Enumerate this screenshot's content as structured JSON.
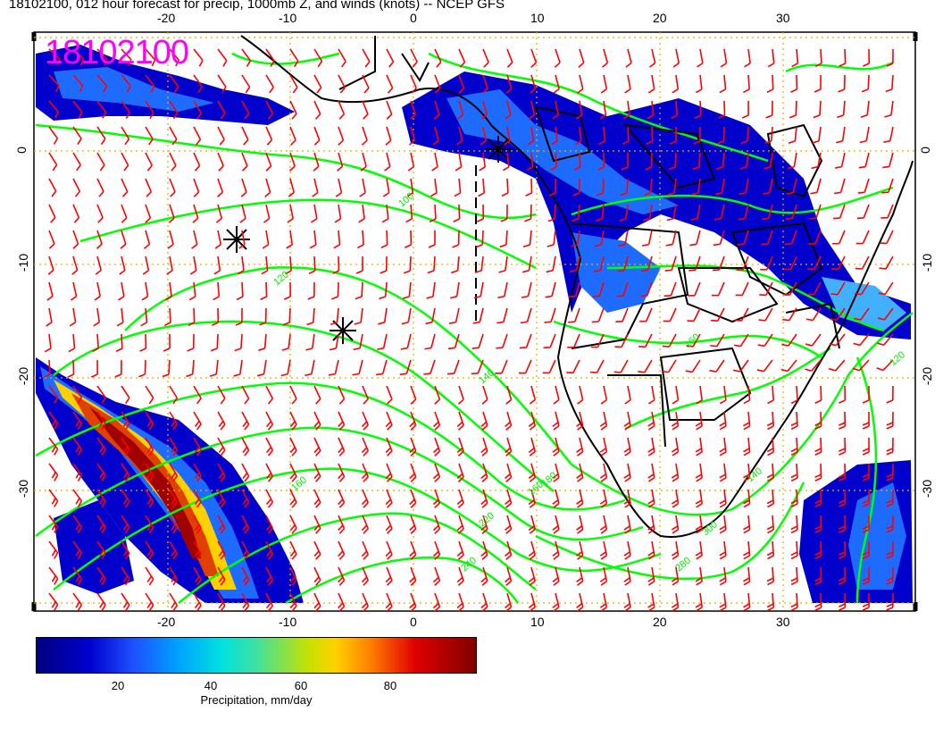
{
  "title": "18102100, 012 hour forecast for precip, 1000mb Z, and winds (knots) -- NCEP GFS",
  "date_stamp": "18102100",
  "map": {
    "lon_ticks": [
      "-20",
      "-10",
      "0",
      "10",
      "20",
      "30"
    ],
    "lat_ticks": [
      "0",
      "-10",
      "-20",
      "-30"
    ],
    "lon_range": [
      -30,
      40
    ],
    "lat_range": [
      -40,
      10
    ],
    "contour_labels": [
      "100",
      "120",
      "140",
      "160",
      "160",
      "180",
      "220",
      "240",
      "280",
      "300",
      "140",
      "120",
      "160"
    ],
    "colors": {
      "contour": "#00ff00",
      "barb": "#ff0000",
      "border": "#000000",
      "grid": "#e0b000",
      "stamp": "#ff00ff"
    }
  },
  "colorbar": {
    "ticks": [
      "20",
      "40",
      "60",
      "80"
    ],
    "title": "Precipitation, mm/day",
    "range": [
      0,
      100
    ]
  }
}
